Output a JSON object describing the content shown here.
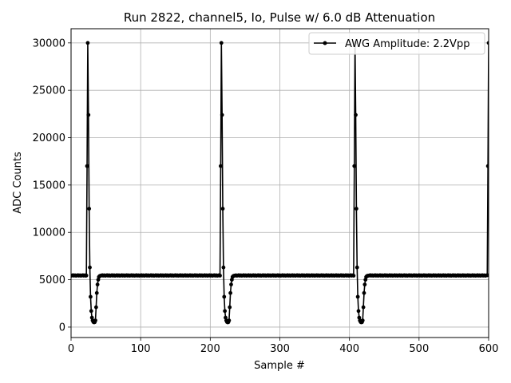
{
  "chart_data": {
    "type": "line",
    "title": "Run 2822, channel5, Io, Pulse w/ 6.0 dB Attenuation",
    "xlabel": "Sample #",
    "ylabel": "ADC Counts",
    "xlim": [
      0,
      600
    ],
    "ylim": [
      -1100,
      31500
    ],
    "xticks": [
      0,
      100,
      200,
      300,
      400,
      500,
      600
    ],
    "yticks": [
      0,
      5000,
      10000,
      15000,
      20000,
      25000,
      30000
    ],
    "grid": true,
    "legend": {
      "placement": "top-right"
    },
    "series": [
      {
        "name": "AWG Amplitude: 2.2Vpp",
        "color": "#000000",
        "marker": "point",
        "baseline": 5450,
        "pulse_starts": [
          23,
          215,
          407,
          599
        ],
        "pulse_shape": [
          17000,
          30000,
          22400,
          12500,
          6300,
          3200,
          1700,
          1000,
          700,
          550,
          500,
          520,
          700,
          2100,
          3600,
          4500,
          5000,
          5300,
          5380,
          5420
        ]
      }
    ]
  }
}
